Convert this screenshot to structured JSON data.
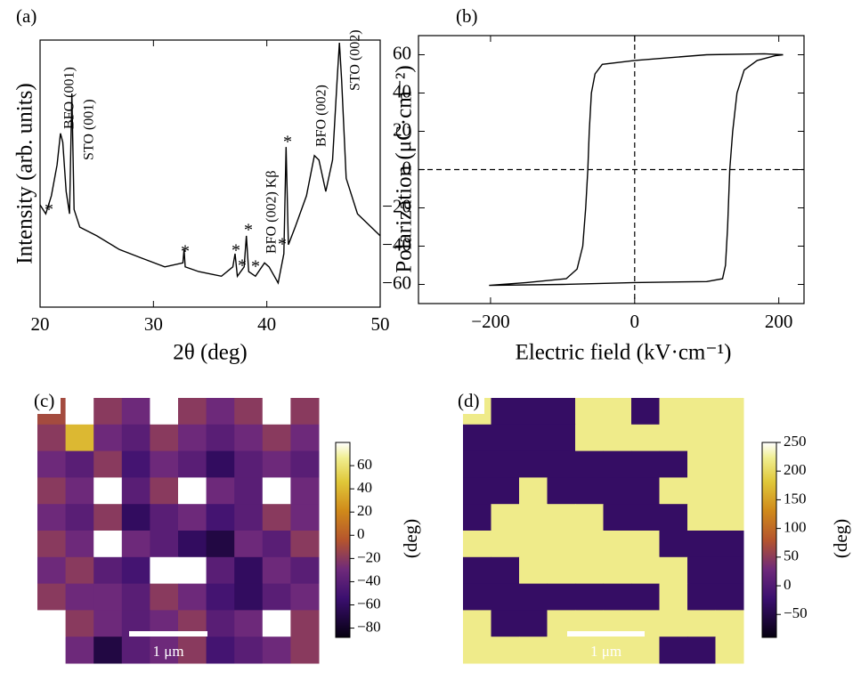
{
  "chart_data": [
    {
      "type": "line",
      "label": "(a)",
      "xlabel": "2θ (deg)",
      "ylabel": "Intensity (arb. units)",
      "color": "#000000",
      "x": [
        20,
        20.5,
        21,
        21.5,
        21.8,
        22.0,
        22.3,
        22.6,
        22.8,
        23.0,
        23.5,
        25,
        27,
        29,
        31,
        32.6,
        32.7,
        32.8,
        34,
        36,
        37,
        37.2,
        37.4,
        38.0,
        38.2,
        38.4,
        39,
        39.8,
        40.2,
        41,
        41.5,
        41.7,
        41.9,
        42.5,
        43.5,
        44.2,
        44.6,
        45.2,
        45.8,
        46.2,
        46.4,
        46.6,
        47,
        48,
        50
      ],
      "values": [
        340,
        250,
        466,
        1350,
        4000,
        2950,
        540,
        250,
        15850,
        290,
        158,
        117,
        73,
        54,
        40,
        46,
        73,
        40,
        34,
        29,
        40,
        63,
        29,
        40,
        117,
        34,
        29,
        46,
        40,
        23,
        63,
        2500,
        86,
        158,
        466,
        1860,
        1600,
        540,
        1600,
        25000,
        91000,
        25000,
        850,
        250,
        117
      ],
      "xlim": [
        20,
        50
      ],
      "xticks": [
        20,
        30,
        40,
        50
      ],
      "ylim": [
        10,
        100000
      ],
      "yscale": "log",
      "annotations": [
        "BFO (001)",
        "STO (001)",
        "BFO (002) Kβ",
        "BFO (002)",
        "STO (002)",
        "*",
        "*",
        "*",
        "*",
        "*",
        "*",
        "*",
        "*"
      ]
    },
    {
      "type": "line",
      "label": "(b)",
      "xlabel": "Electric field (kV·cm⁻¹)",
      "ylabel": "Polarization (μC·cm⁻²)",
      "color": "#000000",
      "x": [
        206,
        180,
        100,
        0,
        -45,
        -55,
        -60,
        -63,
        -65,
        -68,
        -72,
        -80,
        -95,
        -150,
        -202,
        -100,
        0,
        100,
        122,
        126,
        129,
        132,
        136,
        142,
        152,
        170,
        195,
        206
      ],
      "values": [
        60,
        60.5,
        60,
        57,
        55,
        50,
        40,
        20,
        0,
        -20,
        -40,
        -52,
        -57,
        -59,
        -60.5,
        -60,
        -59,
        -58.5,
        -57,
        -50,
        -30,
        0,
        20,
        40,
        52,
        57,
        59.5,
        60
      ],
      "xlim": [
        -300,
        235
      ],
      "xticks": [
        {
          "value": -200,
          "label": "−200"
        },
        0,
        200
      ],
      "ylim": [
        -70,
        70
      ],
      "yticks": [
        {
          "value": -60,
          "label": "−60"
        },
        {
          "value": -40,
          "label": "−40"
        },
        {
          "value": -20,
          "label": "−20"
        },
        0,
        20,
        40,
        60
      ],
      "zero_lines": true
    },
    {
      "type": "heatmap",
      "label": "(c)",
      "colormap": "inferno",
      "clabel": "(deg)",
      "scalebar": "1 μm",
      "z": [
        [
          -10,
          80,
          -20,
          -30,
          80,
          -20,
          -30,
          -20,
          80,
          -20
        ],
        [
          -20,
          40,
          -30,
          -40,
          -20,
          -30,
          -40,
          -30,
          -20,
          -30
        ],
        [
          -30,
          -40,
          -20,
          -50,
          -30,
          -40,
          -60,
          -40,
          -30,
          -40
        ],
        [
          -20,
          -30,
          80,
          -40,
          -20,
          80,
          -30,
          -40,
          80,
          -30
        ],
        [
          -30,
          -40,
          -20,
          -60,
          -40,
          -30,
          -50,
          -40,
          -20,
          -30
        ],
        [
          -20,
          -30,
          80,
          -30,
          -40,
          -60,
          -70,
          -30,
          -40,
          -20
        ],
        [
          -30,
          -20,
          -40,
          -50,
          80,
          80,
          -40,
          -60,
          -30,
          -40
        ],
        [
          -20,
          -30,
          -30,
          -40,
          -20,
          -30,
          -50,
          -60,
          -40,
          -30
        ],
        [
          80,
          -20,
          -30,
          -40,
          -30,
          -20,
          -40,
          -30,
          80,
          -20
        ],
        [
          80,
          -30,
          -70,
          -40,
          -30,
          -20,
          -50,
          -40,
          -30,
          -20
        ]
      ],
      "clim": [
        -88,
        80
      ],
      "cticks": [
        {
          "value": -80,
          "label": "−80"
        },
        {
          "value": -60,
          "label": "−60"
        },
        {
          "value": -40,
          "label": "−40"
        },
        {
          "value": -20,
          "label": "−20"
        },
        0,
        20,
        40,
        60
      ]
    },
    {
      "type": "heatmap",
      "label": "(d)",
      "colormap": "inferno",
      "clabel": "(deg)",
      "scalebar": "1 μm",
      "z": [
        [
          220,
          -30,
          -30,
          -30,
          220,
          220,
          -30,
          220,
          220,
          220
        ],
        [
          -30,
          -30,
          -30,
          -30,
          220,
          220,
          220,
          220,
          220,
          220
        ],
        [
          -30,
          -30,
          -30,
          -30,
          -30,
          -30,
          -30,
          -30,
          220,
          220
        ],
        [
          -30,
          -30,
          220,
          -30,
          -30,
          -30,
          -30,
          220,
          220,
          220
        ],
        [
          -30,
          220,
          220,
          220,
          220,
          -30,
          -30,
          -30,
          220,
          220
        ],
        [
          220,
          220,
          220,
          220,
          220,
          220,
          220,
          -30,
          -30,
          -30
        ],
        [
          -30,
          -30,
          220,
          220,
          220,
          220,
          220,
          220,
          -30,
          -30
        ],
        [
          -30,
          -30,
          -30,
          -30,
          -30,
          -30,
          -30,
          220,
          -30,
          -30
        ],
        [
          220,
          -30,
          -30,
          220,
          220,
          220,
          220,
          220,
          220,
          220
        ],
        [
          220,
          220,
          220,
          220,
          220,
          220,
          220,
          -30,
          -30,
          220
        ]
      ],
      "clim": [
        -90,
        250
      ],
      "cticks": [
        {
          "value": -50,
          "label": "−50"
        },
        0,
        50,
        100,
        150,
        200,
        250
      ]
    }
  ]
}
